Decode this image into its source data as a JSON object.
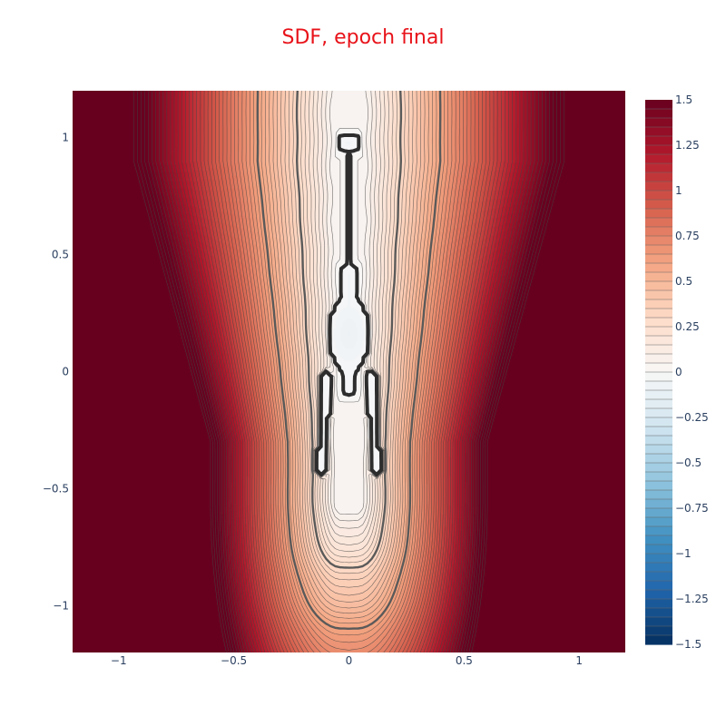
{
  "chart_data": {
    "type": "heatmap",
    "subtype": "contour",
    "title": "SDF, epoch final",
    "title_color": "#e8131a",
    "xlabel": "",
    "ylabel": "",
    "xlim": [
      -1.2,
      1.2
    ],
    "ylim": [
      -1.2,
      1.2
    ],
    "xticks": [
      {
        "value": -1,
        "label": "−1"
      },
      {
        "value": -0.5,
        "label": "−0.5"
      },
      {
        "value": 0,
        "label": "0"
      },
      {
        "value": 0.5,
        "label": "0.5"
      },
      {
        "value": 1,
        "label": "1"
      }
    ],
    "yticks": [
      {
        "value": 1,
        "label": "1"
      },
      {
        "value": 0.5,
        "label": "0.5"
      },
      {
        "value": 0,
        "label": "0"
      },
      {
        "value": -0.5,
        "label": "−0.5"
      },
      {
        "value": -1,
        "label": "−1"
      }
    ],
    "colorscale": "RdBu",
    "colorscale_stops": [
      "#053061",
      "#2166ac",
      "#4393c3",
      "#92c5de",
      "#d1e5f0",
      "#f7f7f7",
      "#fddbc7",
      "#f4a582",
      "#d6604d",
      "#b2182b",
      "#67001f"
    ],
    "colorbar": {
      "range": [
        -1.5,
        1.5
      ],
      "ticks": [
        {
          "value": 1.5,
          "label": "1.5"
        },
        {
          "value": 1.25,
          "label": "1.25"
        },
        {
          "value": 1,
          "label": "1"
        },
        {
          "value": 0.75,
          "label": "0.75"
        },
        {
          "value": 0.5,
          "label": "0.5"
        },
        {
          "value": 0.25,
          "label": "0.25"
        },
        {
          "value": 0,
          "label": "0"
        },
        {
          "value": -0.25,
          "label": "−0.25"
        },
        {
          "value": -0.5,
          "label": "−0.5"
        },
        {
          "value": -0.75,
          "label": "−0.75"
        },
        {
          "value": -1,
          "label": "−1"
        },
        {
          "value": -1.25,
          "label": "−1.25"
        },
        {
          "value": -1.5,
          "label": "−1.5"
        }
      ]
    },
    "contour_step": 0.03,
    "emphasized_levels": [
      0,
      0.3,
      0.6
    ],
    "zero_level_shape": [
      {
        "part": "head",
        "x": [
          -0.05,
          0.05
        ],
        "y": [
          0.92,
          1.02
        ]
      },
      {
        "part": "stem",
        "x": [
          -0.01,
          0.01
        ],
        "y": [
          0.45,
          0.92
        ]
      },
      {
        "part": "body",
        "x": [
          -0.1,
          0.1
        ],
        "y": [
          -0.11,
          0.45
        ]
      },
      {
        "part": "left-leg",
        "x": [
          -0.14,
          -0.05
        ],
        "y": [
          -0.45,
          0.0
        ]
      },
      {
        "part": "right-leg",
        "x": [
          0.05,
          0.14
        ],
        "y": [
          -0.45,
          0.0
        ]
      }
    ]
  }
}
